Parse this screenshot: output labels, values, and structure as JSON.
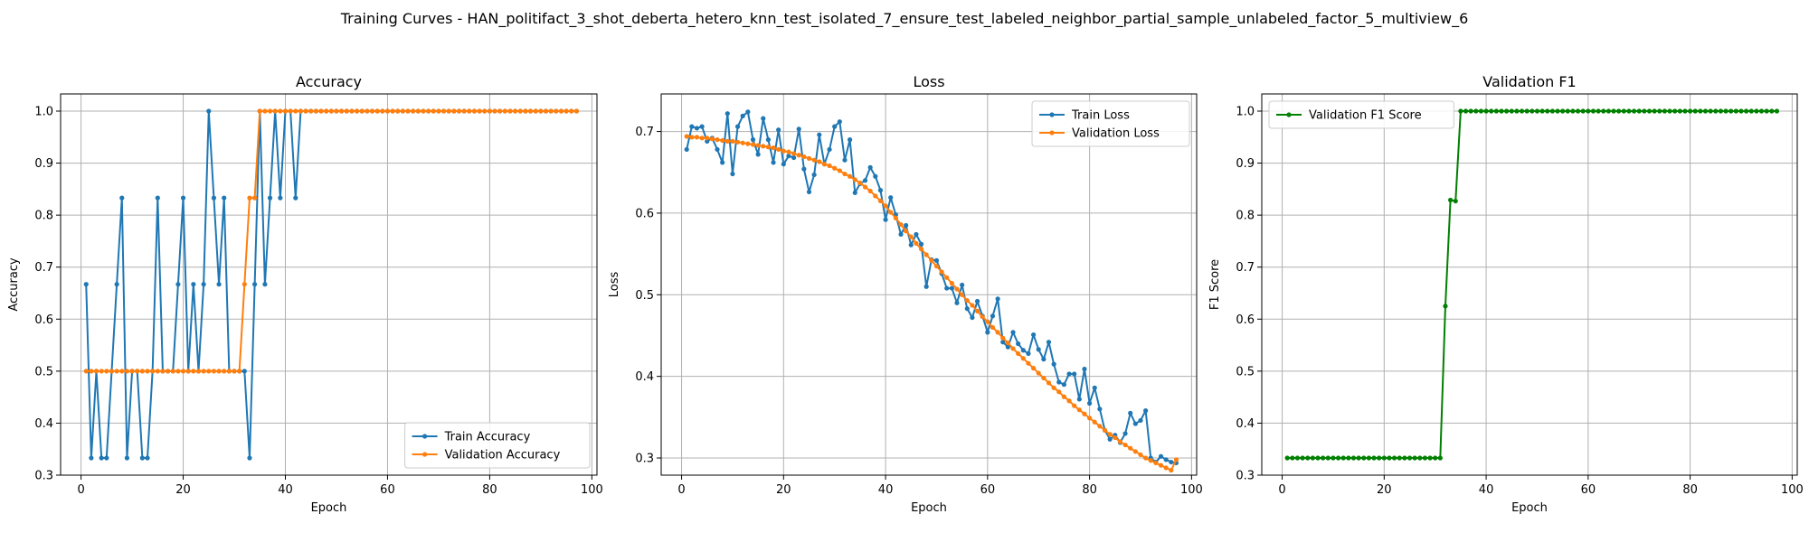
{
  "figure": {
    "title": "Training Curves - HAN_politifact_3_shot_deberta_hetero_knn_test_isolated_7_ensure_test_labeled_neighbor_partial_sample_unlabeled_factor_5_multiview_6"
  },
  "colors": {
    "blue": "#1f77b4",
    "orange": "#ff7f0e",
    "green": "#008000",
    "grid": "#b0b0b0"
  },
  "chart_data": [
    {
      "type": "line",
      "title": "Accuracy",
      "xlabel": "Epoch",
      "ylabel": "Accuracy",
      "xlim": [
        -4,
        101
      ],
      "ylim": [
        0.3,
        1.033
      ],
      "xticks": [
        0,
        20,
        40,
        60,
        80,
        100
      ],
      "yticks": [
        0.3,
        0.4,
        0.5,
        0.6,
        0.7,
        0.8,
        0.9,
        1.0
      ],
      "ytick_labels": [
        "0.3",
        "0.4",
        "0.5",
        "0.6",
        "0.7",
        "0.8",
        "0.9",
        "1.0"
      ],
      "grid": true,
      "legend_position": "lower right",
      "series": [
        {
          "name": "Train Accuracy",
          "color": "#1f77b4",
          "x": [
            1,
            2,
            3,
            4,
            5,
            6,
            7,
            8,
            9,
            10,
            11,
            12,
            13,
            14,
            15,
            16,
            17,
            18,
            19,
            20,
            21,
            22,
            23,
            24,
            25,
            26,
            27,
            28,
            29,
            30,
            31,
            32,
            33,
            34,
            35,
            36,
            37,
            38,
            39,
            40,
            41,
            42,
            43,
            44,
            45,
            46,
            47,
            48,
            49,
            50,
            51,
            52,
            53,
            54,
            55,
            56,
            57,
            58,
            59,
            60,
            61,
            62,
            63,
            64,
            65,
            66,
            67,
            68,
            69,
            70,
            71,
            72,
            73,
            74,
            75,
            76,
            77,
            78,
            79,
            80,
            81,
            82,
            83,
            84,
            85,
            86,
            87,
            88,
            89,
            90,
            91,
            92,
            93,
            94,
            95,
            96,
            97
          ],
          "y": [
            0.667,
            0.333,
            0.5,
            0.333,
            0.333,
            0.5,
            0.667,
            0.833,
            0.333,
            0.5,
            0.5,
            0.333,
            0.333,
            0.5,
            0.833,
            0.5,
            0.5,
            0.5,
            0.667,
            0.833,
            0.5,
            0.667,
            0.5,
            0.667,
            1.0,
            0.833,
            0.667,
            0.833,
            0.5,
            0.5,
            0.5,
            0.5,
            0.333,
            0.667,
            1.0,
            0.667,
            0.833,
            1.0,
            0.833,
            1.0,
            1.0,
            0.833,
            1.0,
            1.0,
            1.0,
            1.0,
            1.0,
            1.0,
            1.0,
            1.0,
            1.0,
            1.0,
            1.0,
            1.0,
            1.0,
            1.0,
            1.0,
            1.0,
            1.0,
            1.0,
            1.0,
            1.0,
            1.0,
            1.0,
            1.0,
            1.0,
            1.0,
            1.0,
            1.0,
            1.0,
            1.0,
            1.0,
            1.0,
            1.0,
            1.0,
            1.0,
            1.0,
            1.0,
            1.0,
            1.0,
            1.0,
            1.0,
            1.0,
            1.0,
            1.0,
            1.0,
            1.0,
            1.0,
            1.0,
            1.0,
            1.0,
            1.0,
            1.0,
            1.0,
            1.0,
            1.0,
            1.0
          ]
        },
        {
          "name": "Validation Accuracy",
          "color": "#ff7f0e",
          "x": [
            1,
            2,
            3,
            4,
            5,
            6,
            7,
            8,
            9,
            10,
            11,
            12,
            13,
            14,
            15,
            16,
            17,
            18,
            19,
            20,
            21,
            22,
            23,
            24,
            25,
            26,
            27,
            28,
            29,
            30,
            31,
            32,
            33,
            34,
            35,
            36,
            37,
            38,
            39,
            40,
            41,
            42,
            43,
            44,
            45,
            46,
            47,
            48,
            49,
            50,
            51,
            52,
            53,
            54,
            55,
            56,
            57,
            58,
            59,
            60,
            61,
            62,
            63,
            64,
            65,
            66,
            67,
            68,
            69,
            70,
            71,
            72,
            73,
            74,
            75,
            76,
            77,
            78,
            79,
            80,
            81,
            82,
            83,
            84,
            85,
            86,
            87,
            88,
            89,
            90,
            91,
            92,
            93,
            94,
            95,
            96,
            97
          ],
          "y": [
            0.5,
            0.5,
            0.5,
            0.5,
            0.5,
            0.5,
            0.5,
            0.5,
            0.5,
            0.5,
            0.5,
            0.5,
            0.5,
            0.5,
            0.5,
            0.5,
            0.5,
            0.5,
            0.5,
            0.5,
            0.5,
            0.5,
            0.5,
            0.5,
            0.5,
            0.5,
            0.5,
            0.5,
            0.5,
            0.5,
            0.5,
            0.667,
            0.833,
            0.833,
            1.0,
            1.0,
            1.0,
            1.0,
            1.0,
            1.0,
            1.0,
            1.0,
            1.0,
            1.0,
            1.0,
            1.0,
            1.0,
            1.0,
            1.0,
            1.0,
            1.0,
            1.0,
            1.0,
            1.0,
            1.0,
            1.0,
            1.0,
            1.0,
            1.0,
            1.0,
            1.0,
            1.0,
            1.0,
            1.0,
            1.0,
            1.0,
            1.0,
            1.0,
            1.0,
            1.0,
            1.0,
            1.0,
            1.0,
            1.0,
            1.0,
            1.0,
            1.0,
            1.0,
            1.0,
            1.0,
            1.0,
            1.0,
            1.0,
            1.0,
            1.0,
            1.0,
            1.0,
            1.0,
            1.0,
            1.0,
            1.0,
            1.0,
            1.0,
            1.0,
            1.0,
            1.0,
            1.0
          ]
        }
      ]
    },
    {
      "type": "line",
      "title": "Loss",
      "xlabel": "Epoch",
      "ylabel": "Loss",
      "xlim": [
        -4,
        101
      ],
      "ylim": [
        0.279,
        0.746
      ],
      "xticks": [
        0,
        20,
        40,
        60,
        80,
        100
      ],
      "yticks": [
        0.3,
        0.4,
        0.5,
        0.6,
        0.7
      ],
      "ytick_labels": [
        "0.3",
        "0.4",
        "0.5",
        "0.6",
        "0.7"
      ],
      "grid": true,
      "legend_position": "upper right",
      "series": [
        {
          "name": "Train Loss",
          "color": "#1f77b4",
          "x": [
            1,
            2,
            3,
            4,
            5,
            6,
            7,
            8,
            9,
            10,
            11,
            12,
            13,
            14,
            15,
            16,
            17,
            18,
            19,
            20,
            21,
            22,
            23,
            24,
            25,
            26,
            27,
            28,
            29,
            30,
            31,
            32,
            33,
            34,
            35,
            36,
            37,
            38,
            39,
            40,
            41,
            42,
            43,
            44,
            45,
            46,
            47,
            48,
            49,
            50,
            51,
            52,
            53,
            54,
            55,
            56,
            57,
            58,
            59,
            60,
            61,
            62,
            63,
            64,
            65,
            66,
            67,
            68,
            69,
            70,
            71,
            72,
            73,
            74,
            75,
            76,
            77,
            78,
            79,
            80,
            81,
            82,
            83,
            84,
            85,
            86,
            87,
            88,
            89,
            90,
            91,
            92,
            93,
            94,
            95,
            96,
            97
          ],
          "y": [
            0.678,
            0.706,
            0.704,
            0.706,
            0.688,
            0.692,
            0.678,
            0.662,
            0.722,
            0.648,
            0.706,
            0.719,
            0.724,
            0.69,
            0.672,
            0.716,
            0.69,
            0.662,
            0.702,
            0.66,
            0.67,
            0.668,
            0.703,
            0.654,
            0.626,
            0.647,
            0.696,
            0.66,
            0.678,
            0.706,
            0.712,
            0.665,
            0.69,
            0.625,
            0.636,
            0.64,
            0.656,
            0.645,
            0.628,
            0.592,
            0.619,
            0.598,
            0.574,
            0.585,
            0.561,
            0.574,
            0.562,
            0.51,
            0.543,
            0.542,
            0.526,
            0.508,
            0.508,
            0.49,
            0.512,
            0.483,
            0.472,
            0.492,
            0.474,
            0.454,
            0.474,
            0.495,
            0.442,
            0.436,
            0.454,
            0.44,
            0.432,
            0.428,
            0.451,
            0.433,
            0.421,
            0.442,
            0.415,
            0.393,
            0.39,
            0.403,
            0.403,
            0.372,
            0.409,
            0.367,
            0.386,
            0.36,
            0.334,
            0.323,
            0.328,
            0.319,
            0.33,
            0.355,
            0.342,
            0.346,
            0.358,
            0.3,
            0.295,
            0.302,
            0.298,
            0.295,
            0.294
          ]
        },
        {
          "name": "Validation Loss",
          "color": "#ff7f0e",
          "x": [
            1,
            2,
            3,
            4,
            5,
            6,
            7,
            8,
            9,
            10,
            11,
            12,
            13,
            14,
            15,
            16,
            17,
            18,
            19,
            20,
            21,
            22,
            23,
            24,
            25,
            26,
            27,
            28,
            29,
            30,
            31,
            32,
            33,
            34,
            35,
            36,
            37,
            38,
            39,
            40,
            41,
            42,
            43,
            44,
            45,
            46,
            47,
            48,
            49,
            50,
            51,
            52,
            53,
            54,
            55,
            56,
            57,
            58,
            59,
            60,
            61,
            62,
            63,
            64,
            65,
            66,
            67,
            68,
            69,
            70,
            71,
            72,
            73,
            74,
            75,
            76,
            77,
            78,
            79,
            80,
            81,
            82,
            83,
            84,
            85,
            86,
            87,
            88,
            89,
            90,
            91,
            92,
            93,
            94,
            95,
            96,
            97
          ],
          "y": [
            0.694,
            0.693,
            0.693,
            0.692,
            0.692,
            0.691,
            0.69,
            0.689,
            0.688,
            0.688,
            0.687,
            0.686,
            0.685,
            0.684,
            0.683,
            0.682,
            0.681,
            0.68,
            0.678,
            0.676,
            0.675,
            0.673,
            0.671,
            0.669,
            0.667,
            0.665,
            0.663,
            0.66,
            0.658,
            0.655,
            0.652,
            0.648,
            0.645,
            0.641,
            0.637,
            0.632,
            0.627,
            0.621,
            0.615,
            0.609,
            0.601,
            0.594,
            0.586,
            0.578,
            0.571,
            0.563,
            0.556,
            0.549,
            0.542,
            0.535,
            0.528,
            0.521,
            0.514,
            0.507,
            0.5,
            0.493,
            0.487,
            0.48,
            0.473,
            0.467,
            0.46,
            0.454,
            0.447,
            0.441,
            0.434,
            0.428,
            0.422,
            0.416,
            0.41,
            0.404,
            0.398,
            0.392,
            0.386,
            0.381,
            0.375,
            0.37,
            0.364,
            0.359,
            0.354,
            0.349,
            0.344,
            0.339,
            0.334,
            0.329,
            0.325,
            0.32,
            0.316,
            0.312,
            0.308,
            0.304,
            0.3,
            0.297,
            0.294,
            0.291,
            0.288,
            0.285,
            0.298
          ]
        }
      ]
    },
    {
      "type": "line",
      "title": "Validation F1",
      "xlabel": "Epoch",
      "ylabel": "F1 Score",
      "xlim": [
        -4,
        101
      ],
      "ylim": [
        0.3,
        1.033
      ],
      "xticks": [
        0,
        20,
        40,
        60,
        80,
        100
      ],
      "yticks": [
        0.3,
        0.4,
        0.5,
        0.6,
        0.7,
        0.8,
        0.9,
        1.0
      ],
      "ytick_labels": [
        "0.3",
        "0.4",
        "0.5",
        "0.6",
        "0.7",
        "0.8",
        "0.9",
        "1.0"
      ],
      "grid": true,
      "legend_position": "upper left",
      "series": [
        {
          "name": "Validation F1 Score",
          "color": "#008000",
          "x": [
            1,
            2,
            3,
            4,
            5,
            6,
            7,
            8,
            9,
            10,
            11,
            12,
            13,
            14,
            15,
            16,
            17,
            18,
            19,
            20,
            21,
            22,
            23,
            24,
            25,
            26,
            27,
            28,
            29,
            30,
            31,
            32,
            33,
            34,
            35,
            36,
            37,
            38,
            39,
            40,
            41,
            42,
            43,
            44,
            45,
            46,
            47,
            48,
            49,
            50,
            51,
            52,
            53,
            54,
            55,
            56,
            57,
            58,
            59,
            60,
            61,
            62,
            63,
            64,
            65,
            66,
            67,
            68,
            69,
            70,
            71,
            72,
            73,
            74,
            75,
            76,
            77,
            78,
            79,
            80,
            81,
            82,
            83,
            84,
            85,
            86,
            87,
            88,
            89,
            90,
            91,
            92,
            93,
            94,
            95,
            96,
            97
          ],
          "y": [
            0.333,
            0.333,
            0.333,
            0.333,
            0.333,
            0.333,
            0.333,
            0.333,
            0.333,
            0.333,
            0.333,
            0.333,
            0.333,
            0.333,
            0.333,
            0.333,
            0.333,
            0.333,
            0.333,
            0.333,
            0.333,
            0.333,
            0.333,
            0.333,
            0.333,
            0.333,
            0.333,
            0.333,
            0.333,
            0.333,
            0.333,
            0.625,
            0.829,
            0.827,
            1.0,
            1.0,
            1.0,
            1.0,
            1.0,
            1.0,
            1.0,
            1.0,
            1.0,
            1.0,
            1.0,
            1.0,
            1.0,
            1.0,
            1.0,
            1.0,
            1.0,
            1.0,
            1.0,
            1.0,
            1.0,
            1.0,
            1.0,
            1.0,
            1.0,
            1.0,
            1.0,
            1.0,
            1.0,
            1.0,
            1.0,
            1.0,
            1.0,
            1.0,
            1.0,
            1.0,
            1.0,
            1.0,
            1.0,
            1.0,
            1.0,
            1.0,
            1.0,
            1.0,
            1.0,
            1.0,
            1.0,
            1.0,
            1.0,
            1.0,
            1.0,
            1.0,
            1.0,
            1.0,
            1.0,
            1.0,
            1.0,
            1.0,
            1.0,
            1.0,
            1.0,
            1.0,
            1.0
          ]
        }
      ]
    }
  ]
}
